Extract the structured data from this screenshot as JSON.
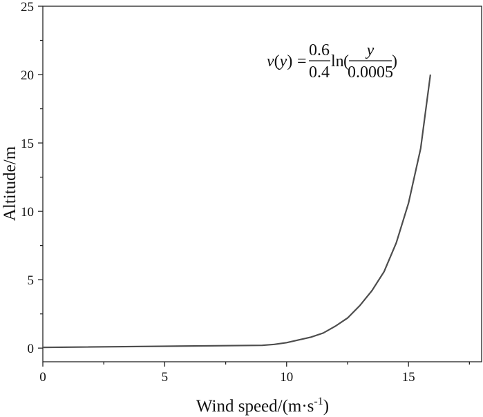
{
  "chart_data": {
    "type": "line",
    "title": "",
    "xlabel": "Wind speed/(m·s",
    "xlabel_sup": "-1",
    "xlabel_close": ")",
    "ylabel": "Altitude/m",
    "xlim": [
      0,
      18
    ],
    "ylim": [
      -1,
      25
    ],
    "xticks": [
      0,
      5,
      10,
      15
    ],
    "yticks": [
      0,
      5,
      10,
      15,
      20,
      25
    ],
    "x_minor_ticks": [
      2.5,
      7.5,
      12.5,
      17.5
    ],
    "y_minor_ticks": [
      2.5,
      7.5,
      12.5,
      17.5,
      22.5
    ],
    "grid": false,
    "line_color": "#4d4d4d",
    "annotation": {
      "lhs_v": "v",
      "lhs_open": "(",
      "lhs_y": "y",
      "lhs_close": ")",
      "equals": "=",
      "frac1_num": "0.6",
      "frac1_den": "0.4",
      "ln": "ln",
      "paren_open": "(",
      "frac2_num": "y",
      "frac2_den": "0.0005",
      "paren_close": ")"
    },
    "series": [
      {
        "x": [
          0,
          9,
          9.5,
          10,
          10.5,
          11,
          11.5,
          12,
          12.5,
          13,
          13.5,
          14,
          14.5,
          15,
          15.5,
          15.9
        ],
        "y": [
          0.05,
          0.2,
          0.27,
          0.4,
          0.6,
          0.8,
          1.1,
          1.6,
          2.2,
          3.1,
          4.2,
          5.6,
          7.7,
          10.6,
          14.6,
          20
        ]
      }
    ]
  }
}
